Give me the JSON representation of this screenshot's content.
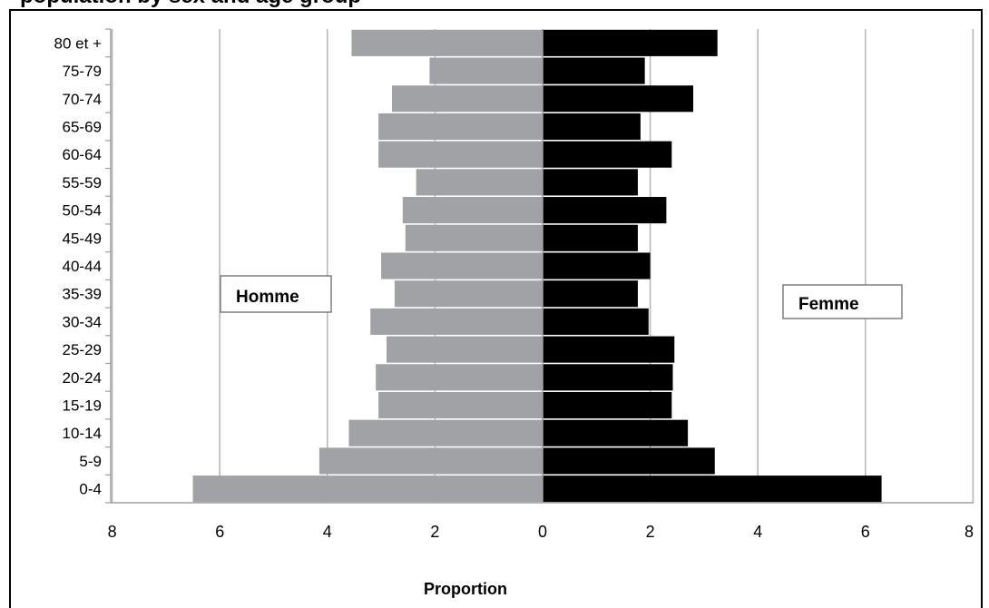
{
  "title": "population by sex and age group",
  "chart_data": {
    "type": "bar",
    "orientation": "horizontal",
    "layout": "population-pyramid",
    "categories": [
      "0-4",
      "5-9",
      "10-14",
      "15-19",
      "20-24",
      "25-29",
      "30-34",
      "35-39",
      "40-44",
      "45-49",
      "50-54",
      "55-59",
      "60-64",
      "65-69",
      "70-74",
      "75-79",
      "80 et +"
    ],
    "series": [
      {
        "name": "Homme",
        "color": "#a0a2a5",
        "side": "left",
        "values": [
          6.5,
          4.15,
          3.6,
          3.05,
          3.1,
          2.9,
          3.2,
          2.75,
          3.0,
          2.55,
          2.6,
          2.35,
          3.05,
          3.05,
          2.8,
          2.1,
          3.55
        ]
      },
      {
        "name": "Femme",
        "color": "#000000",
        "side": "right",
        "values": [
          6.3,
          3.2,
          2.7,
          2.4,
          2.42,
          2.45,
          1.97,
          1.77,
          2.0,
          1.77,
          2.3,
          1.77,
          2.4,
          1.82,
          2.8,
          1.9,
          3.25
        ]
      }
    ],
    "xlabel": "Proportion",
    "ylabel": "",
    "xlim": [
      -8,
      8
    ],
    "xticks": [
      8,
      6,
      4,
      2,
      0,
      2,
      4,
      6,
      8
    ],
    "grid": true,
    "series_labels": [
      "Homme",
      "Femme"
    ]
  }
}
